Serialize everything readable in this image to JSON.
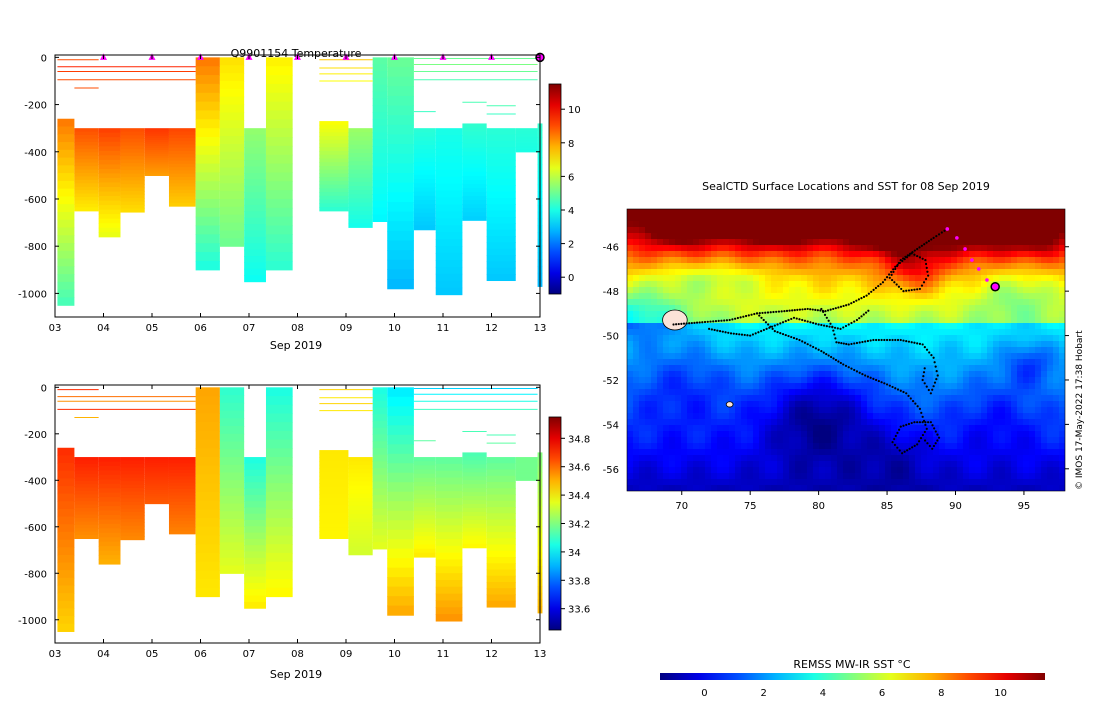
{
  "figure": {
    "credit": "© IMOS 17-May-2022 17:38 Hobart"
  },
  "chart_data": [
    {
      "id": "temperature-section",
      "type": "heatmap",
      "title": "Q9901154  Temperature",
      "xlabel": "Sep 2019",
      "ylabel": "",
      "x_ticks": [
        "03",
        "04",
        "05",
        "06",
        "07",
        "08",
        "09",
        "10",
        "11",
        "12",
        "13"
      ],
      "x_range": [
        3.0,
        13.0
      ],
      "y_ticks": [
        0,
        -200,
        -400,
        -600,
        -800,
        -1000
      ],
      "y_range": [
        -1100,
        10
      ],
      "colorbar": {
        "range": [
          -1,
          11.5
        ],
        "ticks": [
          0,
          2,
          4,
          6,
          8,
          10
        ],
        "colormap": "jet"
      },
      "profile_markers_x": [
        4,
        5,
        6,
        7,
        8,
        9,
        10,
        11,
        12
      ],
      "final_marker_x": 13,
      "marker_color": "#ff00ff",
      "profiles": [
        {
          "x0": 3.05,
          "x1": 3.4,
          "top": -260,
          "bottom": -1050,
          "top_value": 8.5,
          "bottom_value": 4.5
        },
        {
          "x0": 3.4,
          "x1": 3.9,
          "top": -300,
          "bottom": -650,
          "top_value": 9.0,
          "bottom_value": 7.0
        },
        {
          "x0": 3.9,
          "x1": 4.35,
          "top": -300,
          "bottom": -760,
          "top_value": 9.2,
          "bottom_value": 6.5
        },
        {
          "x0": 4.35,
          "x1": 4.85,
          "top": -300,
          "bottom": -655,
          "top_value": 9.0,
          "bottom_value": 7.2
        },
        {
          "x0": 4.85,
          "x1": 5.35,
          "top": -300,
          "bottom": -500,
          "top_value": 9.3,
          "bottom_value": 8.0
        },
        {
          "x0": 5.35,
          "x1": 5.9,
          "top": -300,
          "bottom": -630,
          "top_value": 9.1,
          "bottom_value": 7.4
        },
        {
          "x0": 5.9,
          "x1": 6.4,
          "top": 0,
          "bottom": -900,
          "top_value": 8.5,
          "bottom_value": 4.0
        },
        {
          "x0": 6.4,
          "x1": 6.9,
          "top": 0,
          "bottom": -800,
          "top_value": 7.2,
          "bottom_value": 5.0
        },
        {
          "x0": 6.9,
          "x1": 7.35,
          "top": -300,
          "bottom": -950,
          "top_value": 5.5,
          "bottom_value": 3.8
        },
        {
          "x0": 7.35,
          "x1": 7.9,
          "top": 0,
          "bottom": -900,
          "top_value": 7.0,
          "bottom_value": 4.2
        },
        {
          "x0": 8.45,
          "x1": 9.05,
          "top": -270,
          "bottom": -650,
          "top_value": 6.8,
          "bottom_value": 4.2
        },
        {
          "x0": 9.05,
          "x1": 9.55,
          "top": -300,
          "bottom": -720,
          "top_value": 5.6,
          "bottom_value": 3.9
        },
        {
          "x0": 9.55,
          "x1": 9.85,
          "top": 0,
          "bottom": -695,
          "top_value": 4.8,
          "bottom_value": 3.6
        },
        {
          "x0": 9.85,
          "x1": 10.4,
          "top": 0,
          "bottom": -980,
          "top_value": 5.0,
          "bottom_value": 2.8
        },
        {
          "x0": 10.4,
          "x1": 10.85,
          "top": -300,
          "bottom": -730,
          "top_value": 4.2,
          "bottom_value": 3.0
        },
        {
          "x0": 10.85,
          "x1": 11.4,
          "top": -300,
          "bottom": -1005,
          "top_value": 4.0,
          "bottom_value": 3.0
        },
        {
          "x0": 11.4,
          "x1": 11.9,
          "top": -280,
          "bottom": -690,
          "top_value": 4.3,
          "bottom_value": 3.1
        },
        {
          "x0": 11.9,
          "x1": 12.5,
          "top": -300,
          "bottom": -945,
          "top_value": 4.2,
          "bottom_value": 3.0
        },
        {
          "x0": 12.5,
          "x1": 12.95,
          "top": -300,
          "bottom": -400,
          "top_value": 4.2,
          "bottom_value": 4.0
        },
        {
          "x0": 12.95,
          "x1": 13.05,
          "top": -280,
          "bottom": -970,
          "top_value": 4.3,
          "bottom_value": 2.8
        }
      ],
      "thin_lines": [
        {
          "x0": 3.05,
          "x1": 3.9,
          "depth": -10,
          "value": 9.0
        },
        {
          "x0": 3.05,
          "x1": 5.9,
          "depth": -40,
          "value": 9.5
        },
        {
          "x0": 3.05,
          "x1": 5.9,
          "depth": -60,
          "value": 9.2
        },
        {
          "x0": 3.05,
          "x1": 5.9,
          "depth": -95,
          "value": 9.0
        },
        {
          "x0": 3.4,
          "x1": 3.9,
          "depth": -130,
          "value": 9.0
        },
        {
          "x0": 8.45,
          "x1": 9.55,
          "depth": -10,
          "value": 7.5
        },
        {
          "x0": 8.45,
          "x1": 9.55,
          "depth": -45,
          "value": 7.2
        },
        {
          "x0": 8.45,
          "x1": 9.55,
          "depth": -70,
          "value": 7.0
        },
        {
          "x0": 8.45,
          "x1": 9.55,
          "depth": -100,
          "value": 6.8
        },
        {
          "x0": 10.4,
          "x1": 12.95,
          "depth": -5,
          "value": 5.0
        },
        {
          "x0": 10.4,
          "x1": 12.95,
          "depth": -30,
          "value": 5.2
        },
        {
          "x0": 10.4,
          "x1": 12.95,
          "depth": -60,
          "value": 5.0
        },
        {
          "x0": 10.4,
          "x1": 12.95,
          "depth": -95,
          "value": 4.6
        },
        {
          "x0": 10.4,
          "x1": 10.85,
          "depth": -230,
          "value": 4.4
        },
        {
          "x0": 11.4,
          "x1": 11.9,
          "depth": -190,
          "value": 4.6
        },
        {
          "x0": 11.9,
          "x1": 12.5,
          "depth": -205,
          "value": 4.6
        },
        {
          "x0": 11.9,
          "x1": 12.5,
          "depth": -240,
          "value": 4.4
        }
      ]
    },
    {
      "id": "salinity-section",
      "type": "heatmap",
      "title": "",
      "xlabel": "Sep 2019",
      "ylabel": "",
      "x_ticks": [
        "03",
        "04",
        "05",
        "06",
        "07",
        "08",
        "09",
        "10",
        "11",
        "12",
        "13"
      ],
      "x_range": [
        3.0,
        13.0
      ],
      "y_ticks": [
        0,
        -200,
        -400,
        -600,
        -800,
        -1000
      ],
      "y_range": [
        -1100,
        10
      ],
      "colorbar": {
        "range": [
          33.45,
          34.95
        ],
        "ticks": [
          33.6,
          33.8,
          34,
          34.2,
          34.4,
          34.6,
          34.8
        ],
        "tick_labels": [
          "33.6",
          "33.8",
          "34",
          "34.2",
          "34.4",
          "34.6",
          "34.8"
        ],
        "colormap": "jet"
      },
      "profiles": [
        {
          "x0": 3.05,
          "x1": 3.4,
          "top": -260,
          "bottom": -1050,
          "top_value": 34.7,
          "bottom_value": 34.45
        },
        {
          "x0": 3.4,
          "x1": 3.9,
          "top": -300,
          "bottom": -650,
          "top_value": 34.72,
          "bottom_value": 34.55
        },
        {
          "x0": 3.9,
          "x1": 4.35,
          "top": -300,
          "bottom": -760,
          "top_value": 34.72,
          "bottom_value": 34.5
        },
        {
          "x0": 4.35,
          "x1": 4.85,
          "top": -300,
          "bottom": -655,
          "top_value": 34.72,
          "bottom_value": 34.56
        },
        {
          "x0": 4.85,
          "x1": 5.35,
          "top": -300,
          "bottom": -500,
          "top_value": 34.72,
          "bottom_value": 34.63
        },
        {
          "x0": 5.35,
          "x1": 5.9,
          "top": -300,
          "bottom": -630,
          "top_value": 34.72,
          "bottom_value": 34.57
        },
        {
          "x0": 5.9,
          "x1": 6.4,
          "top": 0,
          "bottom": -900,
          "top_value": 34.52,
          "bottom_value": 34.42
        },
        {
          "x0": 6.4,
          "x1": 6.9,
          "top": 0,
          "bottom": -800,
          "top_value": 34.08,
          "bottom_value": 34.35
        },
        {
          "x0": 6.9,
          "x1": 7.35,
          "top": -300,
          "bottom": -950,
          "top_value": 34.05,
          "bottom_value": 34.42
        },
        {
          "x0": 7.35,
          "x1": 7.9,
          "top": 0,
          "bottom": -900,
          "top_value": 34.05,
          "bottom_value": 34.4
        },
        {
          "x0": 8.45,
          "x1": 9.05,
          "top": -270,
          "bottom": -650,
          "top_value": 34.42,
          "bottom_value": 34.4
        },
        {
          "x0": 9.05,
          "x1": 9.55,
          "top": -300,
          "bottom": -720,
          "top_value": 34.42,
          "bottom_value": 34.32
        },
        {
          "x0": 9.55,
          "x1": 9.85,
          "top": 0,
          "bottom": -695,
          "top_value": 34.05,
          "bottom_value": 34.35
        },
        {
          "x0": 9.85,
          "x1": 10.4,
          "top": 0,
          "bottom": -980,
          "top_value": 33.98,
          "bottom_value": 34.52
        },
        {
          "x0": 10.4,
          "x1": 10.85,
          "top": -300,
          "bottom": -730,
          "top_value": 34.15,
          "bottom_value": 34.42
        },
        {
          "x0": 10.85,
          "x1": 11.4,
          "top": -300,
          "bottom": -1005,
          "top_value": 34.15,
          "bottom_value": 34.55
        },
        {
          "x0": 11.4,
          "x1": 11.9,
          "top": -280,
          "bottom": -690,
          "top_value": 34.12,
          "bottom_value": 34.4
        },
        {
          "x0": 11.9,
          "x1": 12.5,
          "top": -300,
          "bottom": -945,
          "top_value": 34.15,
          "bottom_value": 34.52
        },
        {
          "x0": 12.5,
          "x1": 12.95,
          "top": -300,
          "bottom": -400,
          "top_value": 34.18,
          "bottom_value": 34.18
        },
        {
          "x0": 12.95,
          "x1": 13.05,
          "top": -280,
          "bottom": -970,
          "top_value": 34.2,
          "bottom_value": 34.5
        }
      ],
      "thin_lines": [
        {
          "x0": 3.05,
          "x1": 3.9,
          "depth": -10,
          "value": 34.7
        },
        {
          "x0": 3.05,
          "x1": 5.9,
          "depth": -40,
          "value": 34.6
        },
        {
          "x0": 3.05,
          "x1": 5.9,
          "depth": -60,
          "value": 34.55
        },
        {
          "x0": 3.05,
          "x1": 5.9,
          "depth": -95,
          "value": 34.7
        },
        {
          "x0": 3.4,
          "x1": 3.9,
          "depth": -130,
          "value": 34.5
        },
        {
          "x0": 8.45,
          "x1": 9.55,
          "depth": -10,
          "value": 34.45
        },
        {
          "x0": 8.45,
          "x1": 9.55,
          "depth": -45,
          "value": 34.42
        },
        {
          "x0": 8.45,
          "x1": 9.55,
          "depth": -70,
          "value": 34.45
        },
        {
          "x0": 8.45,
          "x1": 9.55,
          "depth": -100,
          "value": 34.42
        },
        {
          "x0": 10.4,
          "x1": 12.95,
          "depth": -5,
          "value": 33.95
        },
        {
          "x0": 10.4,
          "x1": 12.95,
          "depth": -30,
          "value": 34.0
        },
        {
          "x0": 10.4,
          "x1": 12.95,
          "depth": -60,
          "value": 34.05
        },
        {
          "x0": 10.4,
          "x1": 12.95,
          "depth": -95,
          "value": 34.1
        },
        {
          "x0": 10.4,
          "x1": 10.85,
          "depth": -230,
          "value": 34.15
        },
        {
          "x0": 11.4,
          "x1": 11.9,
          "depth": -190,
          "value": 34.12
        },
        {
          "x0": 11.9,
          "x1": 12.5,
          "depth": -205,
          "value": 34.12
        },
        {
          "x0": 11.9,
          "x1": 12.5,
          "depth": -240,
          "value": 34.15
        }
      ]
    },
    {
      "id": "sst-map",
      "type": "heatmap",
      "title": "SealCTD Surface Locations and SST for 08 Sep 2019",
      "xlabel": "",
      "ylabel": "",
      "x_ticks": [
        70,
        75,
        80,
        85,
        90,
        95
      ],
      "x_range": [
        66.0,
        98.0
      ],
      "y_ticks": [
        -46,
        -48,
        -50,
        -52,
        -54,
        -56
      ],
      "y_range": [
        -57.0,
        -44.3
      ],
      "colorbar": {
        "title": "REMSS MW-IR SST °C",
        "range": [
          -1.5,
          11.5
        ],
        "ticks": [
          0,
          2,
          4,
          6,
          8,
          10
        ],
        "colormap": "jet"
      },
      "current_location": {
        "lon": 92.9,
        "lat": -47.8
      },
      "recent_positions": [
        {
          "lon": 89.4,
          "lat": -45.2
        },
        {
          "lon": 90.1,
          "lat": -45.6
        },
        {
          "lon": 90.7,
          "lat": -46.1
        },
        {
          "lon": 91.2,
          "lat": -46.6
        },
        {
          "lon": 91.7,
          "lat": -47.0
        },
        {
          "lon": 92.3,
          "lat": -47.5
        }
      ],
      "track": [
        [
          69.4,
          -49.5
        ],
        [
          71.5,
          -49.4
        ],
        [
          73.5,
          -49.3
        ],
        [
          75.5,
          -49.0
        ],
        [
          77.5,
          -48.9
        ],
        [
          79.2,
          -48.8
        ],
        [
          80.5,
          -48.9
        ],
        [
          82.2,
          -48.6
        ],
        [
          83.5,
          -48.2
        ],
        [
          84.7,
          -47.6
        ],
        [
          85.6,
          -46.9
        ],
        [
          86.8,
          -46.3
        ],
        [
          87.8,
          -46.6
        ],
        [
          88.0,
          -47.3
        ],
        [
          87.4,
          -47.9
        ],
        [
          86.2,
          -48.0
        ],
        [
          85.2,
          -47.4
        ],
        [
          86.0,
          -46.6
        ],
        [
          87.2,
          -46.1
        ],
        [
          88.4,
          -45.6
        ],
        [
          89.4,
          -45.2
        ],
        [
          75.5,
          -49.0
        ],
        [
          76.8,
          -49.8
        ],
        [
          78.6,
          -50.2
        ],
        [
          80.2,
          -50.7
        ],
        [
          81.8,
          -51.3
        ],
        [
          83.4,
          -51.8
        ],
        [
          85.0,
          -52.2
        ],
        [
          86.4,
          -52.6
        ],
        [
          87.4,
          -53.3
        ],
        [
          87.9,
          -54.2
        ],
        [
          87.2,
          -54.9
        ],
        [
          86.1,
          -55.3
        ],
        [
          85.4,
          -54.8
        ],
        [
          86.0,
          -54.1
        ],
        [
          87.0,
          -53.9
        ],
        [
          88.2,
          -53.9
        ],
        [
          88.8,
          -54.6
        ],
        [
          88.3,
          -55.1
        ],
        [
          87.6,
          -54.6
        ],
        [
          80.2,
          -48.8
        ],
        [
          81.0,
          -49.6
        ],
        [
          81.3,
          -50.3
        ],
        [
          82.2,
          -50.4
        ],
        [
          84.0,
          -50.2
        ],
        [
          86.0,
          -50.2
        ],
        [
          87.6,
          -50.4
        ],
        [
          88.4,
          -51.0
        ],
        [
          88.7,
          -51.8
        ],
        [
          88.2,
          -52.6
        ],
        [
          87.6,
          -52.0
        ],
        [
          87.8,
          -51.3
        ],
        [
          72.0,
          -49.7
        ],
        [
          73.6,
          -49.9
        ],
        [
          75.0,
          -50.0
        ],
        [
          76.6,
          -49.6
        ],
        [
          78.2,
          -49.2
        ],
        [
          80.0,
          -49.5
        ],
        [
          81.6,
          -49.7
        ],
        [
          82.8,
          -49.3
        ],
        [
          83.8,
          -48.8
        ]
      ],
      "blobs": [
        {
          "lon": 70,
          "lat": -45.0,
          "sx": 2.6,
          "sy": 0.9,
          "v": 4.0
        },
        {
          "lon": 66.5,
          "lat": -49.0,
          "sx": 4.0,
          "sy": 1.2,
          "v": -2.2
        },
        {
          "lon": 72,
          "lat": -47.4,
          "sx": 4.5,
          "sy": 0.8,
          "v": -1.4
        },
        {
          "lon": 70,
          "lat": -52,
          "sx": 4.0,
          "sy": 2.0,
          "v": -1.2
        },
        {
          "lon": 77,
          "lat": -44.8,
          "sx": 3.5,
          "sy": 1.0,
          "v": 5.8
        },
        {
          "lon": 85,
          "lat": -45.3,
          "sx": 3.2,
          "sy": 0.9,
          "v": 4.5
        },
        {
          "lon": 91.5,
          "lat": -45.0,
          "sx": 4.0,
          "sy": 1.2,
          "v": 3.8
        },
        {
          "lon": 96,
          "lat": -45.5,
          "sx": 2.0,
          "sy": 0.9,
          "v": 2.2
        },
        {
          "lon": 87,
          "lat": -47,
          "sx": 2.2,
          "sy": 1.0,
          "v": 2.2
        },
        {
          "lon": 94.5,
          "lat": -48.2,
          "sx": 3.0,
          "sy": 1.2,
          "v": -1.4
        },
        {
          "lon": 80,
          "lat": -53.5,
          "sx": 4.2,
          "sy": 2.2,
          "v": -2.4
        },
        {
          "lon": 85.5,
          "lat": -55.5,
          "sx": 3.0,
          "sy": 1.5,
          "v": -0.8
        },
        {
          "lon": 93,
          "lat": -53.5,
          "sx": 3.0,
          "sy": 1.8,
          "v": -0.8
        },
        {
          "lon": 95.5,
          "lat": -51.2,
          "sx": 2.0,
          "sy": 1.0,
          "v": -1.5
        }
      ],
      "land": [
        {
          "lon": 69.5,
          "lat": -49.3,
          "rx": 0.9,
          "ry": 0.45
        },
        {
          "lon": 73.5,
          "lat": -53.1,
          "rx": 0.25,
          "ry": 0.12
        }
      ]
    }
  ]
}
